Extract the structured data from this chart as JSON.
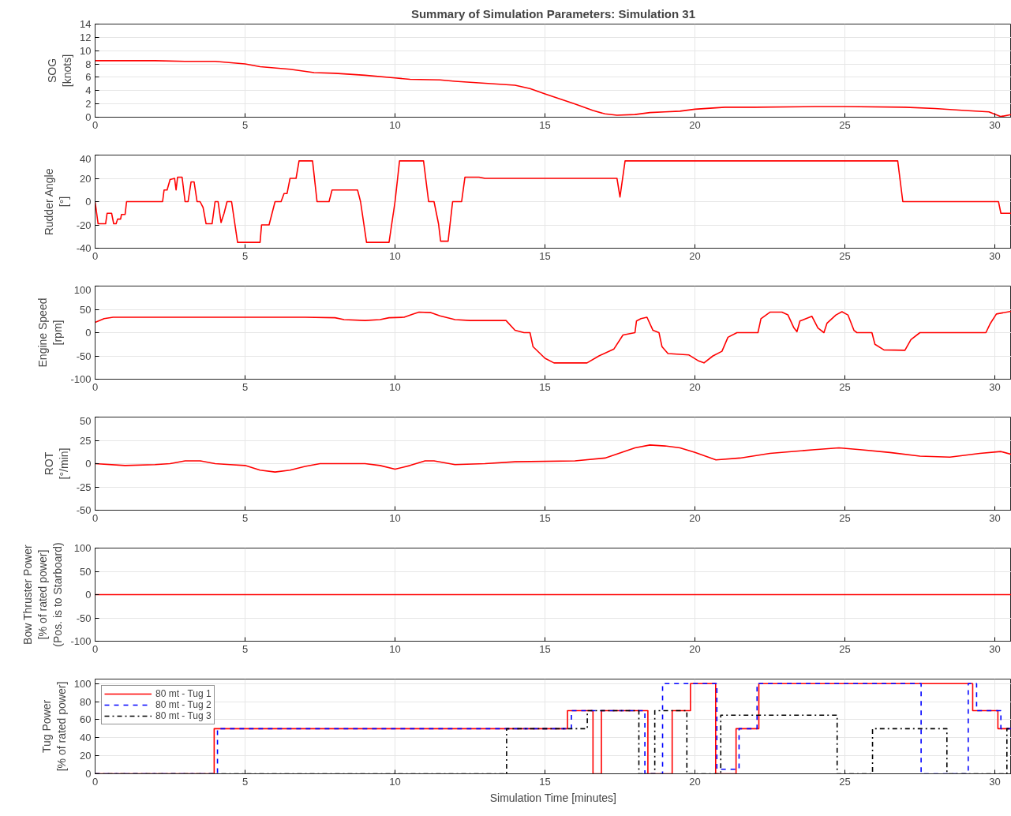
{
  "chart_data": [
    {
      "type": "line",
      "title": "Summary of Simulation Parameters: Simulation 31",
      "ylabel": "SOG\n[knots]",
      "xlim": [
        0,
        30.55
      ],
      "xticks": [
        0,
        5,
        10,
        15,
        20,
        25,
        30
      ],
      "ylim": [
        0,
        14
      ],
      "yticks": [
        0,
        2,
        4,
        6,
        8,
        10,
        12,
        14
      ],
      "grid": true,
      "series": [
        {
          "color": "#ff0000",
          "x": [
            0,
            2,
            3,
            4,
            5,
            5.5,
            6.5,
            7.3,
            8,
            9,
            10,
            10.5,
            11.5,
            12,
            13,
            14,
            14.5,
            15,
            16,
            16.6,
            17,
            17.4,
            18,
            18.5,
            19,
            19.5,
            20,
            21,
            22,
            24,
            25,
            27,
            28,
            29,
            29.8,
            30.2,
            30.55
          ],
          "values": [
            8.5,
            8.5,
            8.4,
            8.4,
            8.0,
            7.6,
            7.2,
            6.7,
            6.6,
            6.3,
            5.9,
            5.7,
            5.6,
            5.4,
            5.1,
            4.8,
            4.3,
            3.5,
            2.0,
            1.0,
            0.5,
            0.3,
            0.4,
            0.7,
            0.8,
            0.9,
            1.2,
            1.5,
            1.5,
            1.6,
            1.6,
            1.5,
            1.3,
            1.0,
            0.8,
            0.1,
            0.4
          ]
        }
      ]
    },
    {
      "type": "line",
      "ylabel": "Rudder Angle\n[°]",
      "xlim": [
        0,
        30.55
      ],
      "xticks": [
        0,
        5,
        10,
        15,
        20,
        25,
        30
      ],
      "ylim": [
        -40,
        40
      ],
      "yticks": [
        -40,
        -20,
        0,
        20,
        40
      ],
      "grid": true,
      "series": [
        {
          "color": "#ff0000",
          "x": [
            0,
            0.1,
            0.35,
            0.4,
            0.55,
            0.62,
            0.7,
            0.75,
            0.85,
            0.88,
            1.0,
            1.05,
            2.25,
            2.3,
            2.4,
            2.5,
            2.65,
            2.7,
            2.75,
            2.9,
            3.0,
            3.1,
            3.2,
            3.3,
            3.4,
            3.5,
            3.6,
            3.7,
            3.9,
            4.0,
            4.1,
            4.2,
            4.3,
            4.4,
            4.55,
            4.75,
            5.5,
            5.55,
            5.8,
            5.9,
            6.0,
            6.2,
            6.3,
            6.4,
            6.5,
            6.7,
            6.8,
            7.25,
            7.4,
            7.8,
            7.9,
            8.75,
            8.85,
            9.05,
            9.8,
            10.0,
            10.15,
            10.95,
            11.12,
            11.3,
            11.45,
            11.52,
            11.77,
            11.92,
            12.22,
            12.33,
            12.8,
            13.0,
            17.4,
            17.5,
            17.67,
            26.76,
            26.93,
            30.12,
            30.2,
            30.55
          ],
          "values": [
            0,
            -19,
            -19,
            -10,
            -10,
            -19,
            -19,
            -15,
            -15,
            -11,
            -11,
            0,
            0,
            10,
            10,
            19,
            20,
            10,
            21,
            21,
            0,
            0,
            17,
            17,
            0,
            0,
            -5,
            -19,
            -19,
            0,
            0,
            -18,
            -10,
            0,
            0,
            -35,
            -35,
            -20,
            -20,
            -10,
            0,
            0,
            7,
            7,
            20,
            20,
            35,
            35,
            0,
            0,
            10,
            10,
            0,
            -35,
            -35,
            0,
            35,
            35,
            0,
            0,
            -19,
            -34,
            -34,
            0,
            0,
            21,
            21,
            20,
            20,
            4,
            35,
            35,
            0,
            0,
            -10,
            -10
          ]
        }
      ]
    },
    {
      "type": "line",
      "ylabel": "Engine Speed\n[rpm]",
      "xlim": [
        0,
        30.55
      ],
      "xticks": [
        0,
        5,
        10,
        15,
        20,
        25,
        30
      ],
      "ylim": [
        -100,
        100
      ],
      "yticks": [
        -100,
        -50,
        0,
        50,
        100
      ],
      "grid": true,
      "series": [
        {
          "color": "#ff0000",
          "x": [
            0,
            0.3,
            0.6,
            5,
            7,
            8,
            8.3,
            9,
            9.5,
            9.8,
            10.3,
            10.6,
            10.8,
            11.2,
            11.5,
            12,
            12.5,
            13.7,
            14,
            14.3,
            14.5,
            14.6,
            15,
            15.3,
            16.4,
            16.8,
            17.3,
            17.6,
            18.0,
            18.05,
            18.2,
            18.4,
            18.6,
            18.8,
            18.9,
            19.1,
            19.8,
            20.1,
            20.3,
            20.6,
            20.9,
            21.1,
            21.4,
            22.1,
            22.2,
            22.5,
            22.9,
            23.1,
            23.3,
            23.4,
            23.5,
            23.9,
            24.1,
            24.3,
            24.4,
            24.7,
            24.9,
            25.1,
            25.3,
            25.4,
            25.9,
            26.0,
            26.3,
            27.0,
            27.2,
            27.5,
            29.7,
            29.85,
            30.05,
            30.55
          ],
          "values": [
            22,
            30,
            33,
            33,
            33,
            32,
            28,
            26,
            28,
            32,
            33,
            40,
            44,
            43,
            36,
            28,
            26,
            26,
            5,
            0,
            0,
            -30,
            -55,
            -65,
            -65,
            -50,
            -35,
            -5,
            0,
            25,
            30,
            33,
            5,
            0,
            -30,
            -45,
            -48,
            -60,
            -65,
            -50,
            -40,
            -10,
            0,
            0,
            30,
            44,
            44,
            38,
            10,
            2,
            25,
            35,
            10,
            0,
            20,
            38,
            45,
            38,
            5,
            0,
            0,
            -25,
            -37,
            -38,
            -15,
            0,
            0,
            20,
            40,
            46
          ]
        }
      ]
    },
    {
      "type": "line",
      "ylabel": "ROT\n[°/min]",
      "xlim": [
        0,
        30.55
      ],
      "xticks": [
        0,
        5,
        10,
        15,
        20,
        25,
        30
      ],
      "ylim": [
        -50,
        50
      ],
      "yticks": [
        -50,
        -25,
        0,
        25,
        50
      ],
      "grid": true,
      "series": [
        {
          "color": "#ff0000",
          "x": [
            0,
            1,
            2,
            2.5,
            3,
            3.5,
            4,
            4.5,
            5,
            5.5,
            6,
            6.5,
            7,
            7.5,
            8,
            9,
            9.5,
            10,
            10.5,
            11,
            11.3,
            12,
            13,
            14,
            16,
            17,
            18,
            18.5,
            19,
            19.5,
            20,
            20.7,
            21.5,
            22.5,
            24,
            24.8,
            25.5,
            26.5,
            27.5,
            28.5,
            29.5,
            30.2,
            30.55
          ],
          "values": [
            0,
            -2,
            -1,
            0,
            3,
            3,
            0,
            -1,
            -2,
            -7,
            -9,
            -7,
            -3,
            0,
            0,
            0,
            -2,
            -6,
            -2,
            3,
            3,
            -1,
            0,
            2,
            3,
            6,
            17,
            20,
            19,
            17,
            12,
            4,
            6,
            11,
            15,
            17,
            15,
            12,
            8,
            7,
            11,
            13,
            10
          ]
        }
      ]
    },
    {
      "type": "line",
      "ylabel": "Bow Thruster Power\n[% of rated power]\n(Pos. is to Starboard)",
      "xlim": [
        0,
        30.55
      ],
      "xticks": [
        0,
        5,
        10,
        15,
        20,
        25,
        30
      ],
      "ylim": [
        -100,
        100
      ],
      "yticks": [
        -100,
        -50,
        0,
        50,
        100
      ],
      "grid": true,
      "series": [
        {
          "color": "#ff0000",
          "x": [
            0,
            30.55
          ],
          "values": [
            0,
            0
          ]
        }
      ]
    },
    {
      "type": "step",
      "xlabel": "Simulation Time [minutes]",
      "ylabel": "Tug Power\n[% of rated power]",
      "xlim": [
        0,
        30.55
      ],
      "xticks": [
        0,
        5,
        10,
        15,
        20,
        25,
        30
      ],
      "ylim": [
        0,
        105
      ],
      "yticks": [
        0,
        20,
        40,
        60,
        80,
        100
      ],
      "grid": true,
      "legend": "top left",
      "series": [
        {
          "name": "80 mt - Tug 1",
          "color": "#ff0000",
          "line_style": "solid",
          "x": [
            0,
            3.97,
            15.75,
            16.6,
            16.88,
            18.43,
            19.24,
            19.85,
            20.69,
            21.37,
            22.13,
            29.26,
            30.1,
            30.55
          ],
          "values": [
            0,
            50,
            70,
            0,
            70,
            0,
            70,
            100,
            0,
            50,
            100,
            70,
            50,
            50
          ]
        },
        {
          "name": "80 mt - Tug 2",
          "color": "#0000ff",
          "line_style": "dashed",
          "x": [
            0,
            4.08,
            15.88,
            18.33,
            18.92,
            20.73,
            21.47,
            22.07,
            27.54,
            29.11,
            29.39,
            30.2,
            30.55
          ],
          "values": [
            0,
            50,
            70,
            0,
            100,
            5,
            50,
            100,
            0,
            100,
            70,
            50,
            50
          ]
        },
        {
          "name": "80 mt - Tug 3",
          "color": "#000000",
          "line_style": "dashdot",
          "x": [
            0,
            13.72,
            16.41,
            18.13,
            18.66,
            19.73,
            20.86,
            24.74,
            25.92,
            28.4,
            30.4,
            30.55
          ],
          "values": [
            0,
            50,
            70,
            0,
            70,
            0,
            65,
            0,
            50,
            0,
            50,
            50
          ]
        }
      ]
    }
  ]
}
